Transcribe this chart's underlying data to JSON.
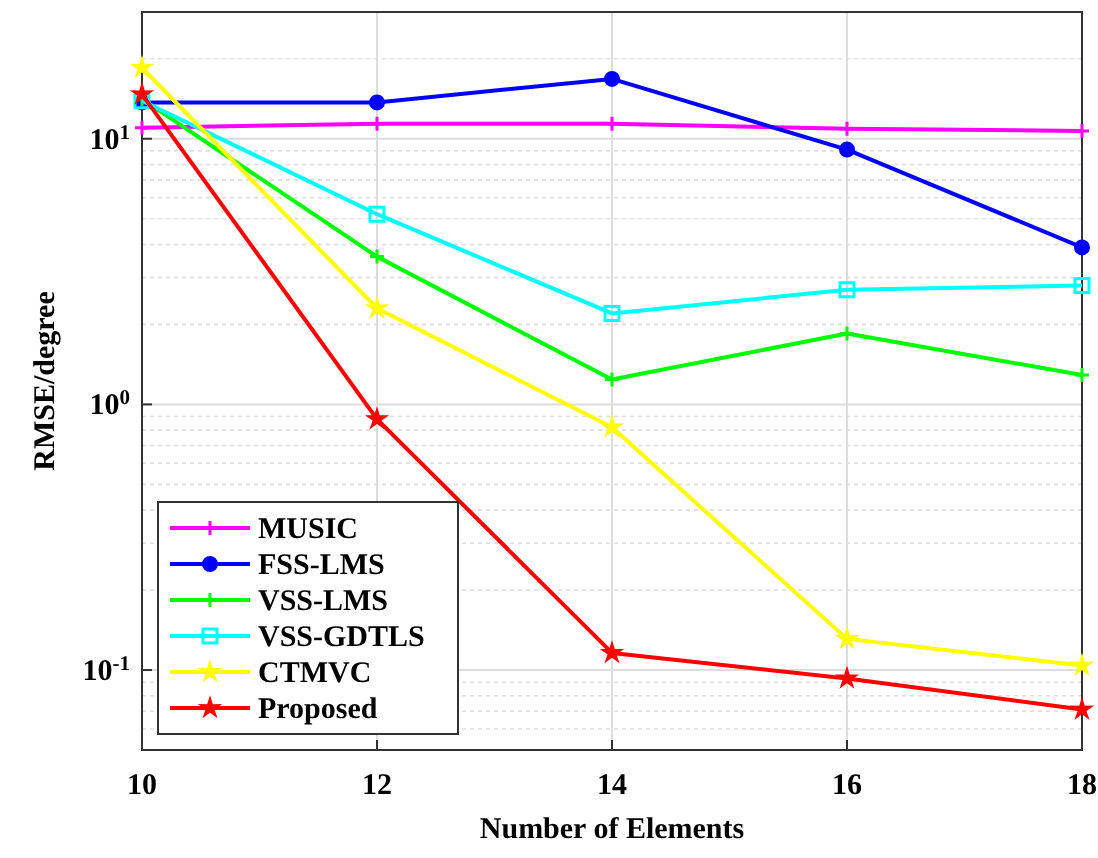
{
  "chart_data": {
    "type": "line",
    "xlabel": "Number of Elements",
    "ylabel": "RMSE/degree",
    "x": [
      10,
      12,
      14,
      16,
      18
    ],
    "series": [
      {
        "name": "MUSIC",
        "color": "#ff00ff",
        "marker": "cross",
        "values": [
          11.0,
          11.4,
          11.4,
          10.9,
          10.7
        ]
      },
      {
        "name": "FSS-LMS",
        "color": "#0000ff",
        "marker": "circle",
        "values": [
          13.7,
          13.7,
          16.8,
          9.1,
          3.9
        ]
      },
      {
        "name": "VSS-LMS",
        "color": "#00ff00",
        "marker": "cross",
        "values": [
          14.1,
          3.6,
          1.24,
          1.85,
          1.29
        ]
      },
      {
        "name": "VSS-GDTLS",
        "color": "#00ffff",
        "marker": "square",
        "values": [
          13.9,
          5.2,
          2.2,
          2.7,
          2.8
        ]
      },
      {
        "name": "CTMVC",
        "color": "#ffff00",
        "marker": "star",
        "values": [
          18.5,
          2.3,
          0.82,
          0.131,
          0.104
        ]
      },
      {
        "name": "Proposed",
        "color": "#ff0000",
        "marker": "star",
        "values": [
          14.7,
          0.88,
          0.116,
          0.093,
          0.071
        ]
      }
    ],
    "xlim": [
      10,
      18
    ],
    "xticks": [
      10,
      12,
      14,
      16,
      18
    ],
    "ylim": [
      0.05,
      30
    ],
    "yticks": [
      {
        "value": 0.1,
        "label": "10$^{-1}$"
      },
      {
        "value": 1,
        "label": "10$^{0}$"
      },
      {
        "value": 10,
        "label": "10$^{1}$"
      }
    ],
    "log": "y",
    "grid": true,
    "legend": "bottom left",
    "line_style": "solid"
  }
}
